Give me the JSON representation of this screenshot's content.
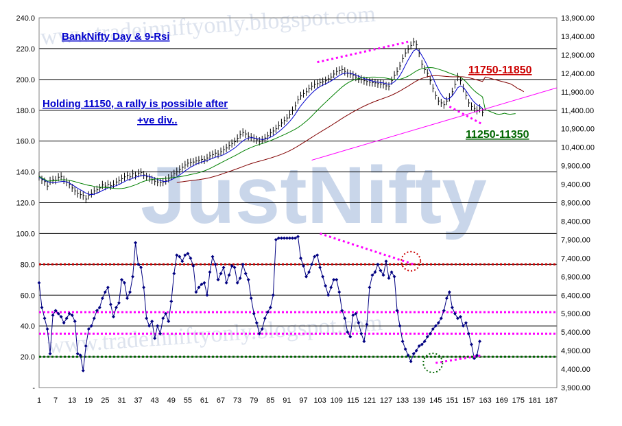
{
  "chart_data": {
    "type": "line",
    "title": "BankNifty Day & 9-Rsi",
    "watermark": {
      "site": "www.tradeinniftyonly.blogspot.com",
      "brand": "JustNifty"
    },
    "annotations": {
      "note_line1": "Holding 11150, a rally is possible after",
      "note_line2": "+ve div..",
      "resistance_label": "11750-11850",
      "support_label": "11250-11350"
    },
    "left_axis": {
      "ticks": [
        "240.0",
        "220.0",
        "200.0",
        "180.0",
        "160.0",
        "140.0",
        "120.0",
        "100.0",
        "80.0",
        "60.0",
        "40.0",
        "20.0",
        "-"
      ],
      "range": [
        0,
        240
      ]
    },
    "right_axis": {
      "ticks": [
        "13,900.00",
        "13,400.00",
        "12,900.00",
        "12,400.00",
        "11,900.00",
        "11,400.00",
        "10,900.00",
        "10,400.00",
        "9,900.00",
        "9,400.00",
        "8,900.00",
        "8,400.00",
        "7,900.00",
        "7,400.00",
        "6,900.00",
        "6,400.00",
        "5,900.00",
        "5,400.00",
        "4,900.00",
        "4,400.00",
        "3,900.00"
      ],
      "range": [
        3900,
        13900
      ]
    },
    "x_axis": {
      "ticks": [
        "1",
        "7",
        "13",
        "19",
        "25",
        "31",
        "37",
        "43",
        "49",
        "55",
        "61",
        "67",
        "73",
        "79",
        "85",
        "91",
        "97",
        "103",
        "109",
        "115",
        "121",
        "127",
        "133",
        "139",
        "145",
        "151",
        "157",
        "163",
        "169",
        "175",
        "181",
        "187"
      ],
      "range": [
        1,
        189
      ]
    },
    "levels": [
      {
        "name": "RSI 80",
        "value": 80,
        "color": "#cc0000",
        "style": "dotted"
      },
      {
        "name": "RSI 49",
        "value": 49,
        "color": "#ff00ff",
        "style": "dotted"
      },
      {
        "name": "RSI 35",
        "value": 35,
        "color": "#ff00ff",
        "style": "dotted"
      },
      {
        "name": "RSI 20",
        "value": 20,
        "color": "#006600",
        "style": "dotted"
      }
    ],
    "series": [
      {
        "id": "price",
        "color": "#000000",
        "close": [
          9610,
          9520,
          9470,
          9350,
          9490,
          9520,
          9510,
          9590,
          9610,
          9520,
          9460,
          9400,
          9300,
          9220,
          9150,
          9120,
          9090,
          9000,
          9100,
          9150,
          9220,
          9250,
          9300,
          9380,
          9350,
          9400,
          9360,
          9400,
          9460,
          9500,
          9550,
          9600,
          9640,
          9600,
          9680,
          9640,
          9700,
          9720,
          9650,
          9600,
          9570,
          9520,
          9480,
          9460,
          9450,
          9460,
          9500,
          9560,
          9620,
          9680,
          9740,
          9800,
          9860,
          9920,
          9970,
          9990,
          10000,
          10030,
          10050,
          10070,
          10060,
          10110,
          10170,
          10200,
          10240,
          10210,
          10280,
          10330,
          10380,
          10440,
          10500,
          10550,
          10640,
          10740,
          10800,
          10760,
          10700,
          10670,
          10640,
          10600,
          10560,
          10600,
          10650,
          10710,
          10790,
          10840,
          10900,
          10990,
          11060,
          11120,
          11190,
          11290,
          11390,
          11520,
          11680,
          11790,
          11850,
          11900,
          11980,
          12050,
          12100,
          12120,
          12150,
          12170,
          12200,
          12250,
          12300,
          12380,
          12450,
          12480,
          12500,
          12450,
          12400,
          12380,
          12350,
          12300,
          12250,
          12240,
          12200,
          12180,
          12160,
          12150,
          12140,
          12120,
          12110,
          12100,
          12060,
          12050,
          12200,
          12350,
          12450,
          12600,
          12800,
          12950,
          13050,
          13150,
          13250,
          13180,
          12950,
          12650,
          12500,
          12400,
          12200,
          12000,
          11800,
          11650,
          11600,
          11550,
          11650,
          11750,
          11900,
          12100,
          12300,
          12200,
          12000,
          11800,
          11600,
          11500,
          11450,
          11400,
          11450,
          11350
        ]
      },
      {
        "id": "ma-short",
        "color": "#0000cc",
        "values": [
          9580,
          9550,
          9510,
          9470,
          9450,
          9440,
          9440,
          9460,
          9470,
          9480,
          9460,
          9430,
          9390,
          9340,
          9290,
          9250,
          9210,
          9160,
          9130,
          9120,
          9130,
          9160,
          9190,
          9230,
          9260,
          9300,
          9320,
          9340,
          9360,
          9390,
          9430,
          9470,
          9510,
          9530,
          9560,
          9590,
          9610,
          9630,
          9640,
          9630,
          9610,
          9590,
          9560,
          9530,
          9500,
          9480,
          9470,
          9490,
          9520,
          9560,
          9600,
          9650,
          9700,
          9760,
          9810,
          9860,
          9900,
          9940,
          9970,
          10000,
          10020,
          10040,
          10070,
          10100,
          10130,
          10150,
          10170,
          10200,
          10240,
          10280,
          10330,
          10380,
          10440,
          10510,
          10570,
          10620,
          10650,
          10660,
          10650,
          10640,
          10620,
          10610,
          10620,
          10640,
          10670,
          10710,
          10760,
          10820,
          10880,
          10950,
          11020,
          11100,
          11190,
          11290,
          11410,
          11520,
          11610,
          11700,
          11780,
          11860,
          11930,
          11990,
          12040,
          12080,
          12110,
          12150,
          12190,
          12240,
          12290,
          12340,
          12380,
          12400,
          12410,
          12400,
          12380,
          12350,
          12320,
          12290,
          12260,
          12230,
          12210,
          12190,
          12170,
          12160,
          12150,
          12140,
          12120,
          12100,
          12120,
          12170,
          12240,
          12340,
          12470,
          12620,
          12760,
          12890,
          13010,
          13050,
          13000,
          12880,
          12750,
          12600,
          12450,
          12280,
          12110,
          11960,
          11830,
          11730,
          11700,
          11720,
          11790,
          11890,
          12010,
          12060,
          12020,
          11930,
          11820,
          11710,
          11620,
          11550,
          11510,
          11450
        ]
      }
    ],
    "rsi_values": [
      68,
      52,
      45,
      38,
      22,
      47,
      50,
      48,
      46,
      42,
      45,
      48,
      47,
      43,
      22,
      21,
      11,
      27,
      38,
      40,
      45,
      50,
      52,
      58,
      62,
      65,
      54,
      46,
      52,
      55,
      70,
      68,
      58,
      62,
      72,
      94,
      80,
      78,
      65,
      45,
      40,
      43,
      32,
      40,
      35,
      45,
      48,
      43,
      56,
      74,
      86,
      85,
      82,
      86,
      87,
      84,
      79,
      62,
      65,
      67,
      68,
      60,
      75,
      85,
      80,
      70,
      74,
      78,
      68,
      73,
      79,
      78,
      68,
      71,
      80,
      74,
      70,
      58,
      48,
      42,
      35,
      38,
      45,
      49,
      52,
      60,
      96,
      97,
      97,
      97,
      97,
      97,
      97,
      97,
      98,
      84,
      79,
      72,
      75,
      80,
      85,
      86,
      78,
      72,
      66,
      60,
      65,
      70,
      70,
      62,
      50,
      45,
      36,
      33,
      47,
      48,
      42,
      35,
      30,
      41,
      65,
      73,
      75,
      80,
      76,
      73,
      82,
      71,
      75,
      72,
      50,
      40,
      30,
      25,
      21,
      17,
      22,
      24,
      27,
      28,
      30,
      33,
      35,
      38,
      40,
      42,
      45,
      50,
      58,
      62,
      52,
      48,
      45,
      46,
      40,
      42,
      35,
      28,
      19,
      21,
      30
    ],
    "resistance_trend": {
      "from": [
        102,
        12700
      ],
      "to": [
        135,
        13250
      ]
    },
    "support_trend": {
      "from": [
        150,
        11500
      ],
      "to": [
        162,
        11020
      ]
    },
    "rsi_divergence": {
      "from": [
        103,
        100
      ],
      "to": [
        137,
        80
      ]
    },
    "rsi_support_trend": {
      "from": [
        145,
        16
      ],
      "to": [
        162,
        21
      ]
    }
  }
}
